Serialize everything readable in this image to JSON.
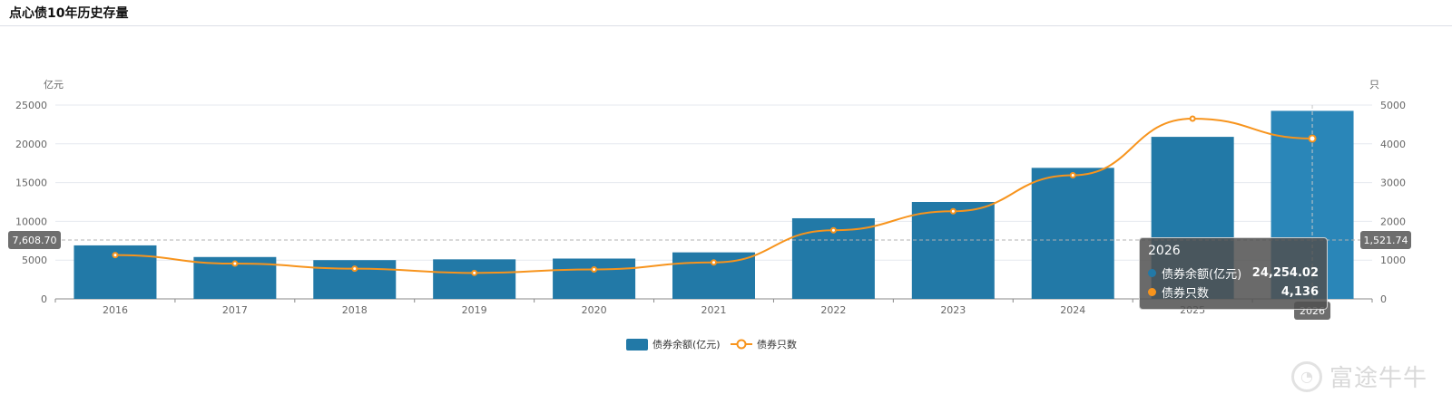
{
  "header": {
    "title": "点心债10年历史存量"
  },
  "colors": {
    "bar": "#2279a7",
    "bar_highlight": "#2a86b8",
    "line": "#f7941d",
    "grid": "#e6e9ef",
    "axis_text": "#666666",
    "pointer_badge": "#6e6e6e"
  },
  "chart_data": {
    "type": "bar",
    "categories": [
      "2016",
      "2017",
      "2018",
      "2019",
      "2020",
      "2021",
      "2022",
      "2023",
      "2024",
      "2025",
      "2026"
    ],
    "series": [
      {
        "name": "债券余额(亿元)",
        "type": "bar",
        "axis": "left",
        "values": [
          6900,
          5400,
          5000,
          5100,
          5200,
          6000,
          10400,
          12500,
          16900,
          20900,
          24254.02
        ]
      },
      {
        "name": "债券只数",
        "type": "line",
        "axis": "right",
        "values": [
          1130,
          910,
          780,
          670,
          760,
          940,
          1770,
          2260,
          3190,
          4650,
          4136
        ]
      }
    ],
    "y_left": {
      "label": "亿元",
      "ticks": [
        "0",
        "5000",
        "10000",
        "15000",
        "20000",
        "25000"
      ],
      "range": [
        0,
        25000
      ]
    },
    "y_right": {
      "label": "只",
      "ticks": [
        "0",
        "1000",
        "2000",
        "3000",
        "4000",
        "5000"
      ],
      "range": [
        0,
        5000
      ]
    },
    "grid": true,
    "legend_position": "bottom-center",
    "pointer": {
      "category": "2026",
      "left_value_label": "7,608.70",
      "right_value_label": "1,521.74"
    }
  },
  "tooltip": {
    "title": "2026",
    "rows": [
      {
        "label": "债券余额(亿元)",
        "value": "24,254.02"
      },
      {
        "label": "债券只数",
        "value": "4,136"
      }
    ]
  },
  "watermark": {
    "text": "富途牛牛"
  }
}
